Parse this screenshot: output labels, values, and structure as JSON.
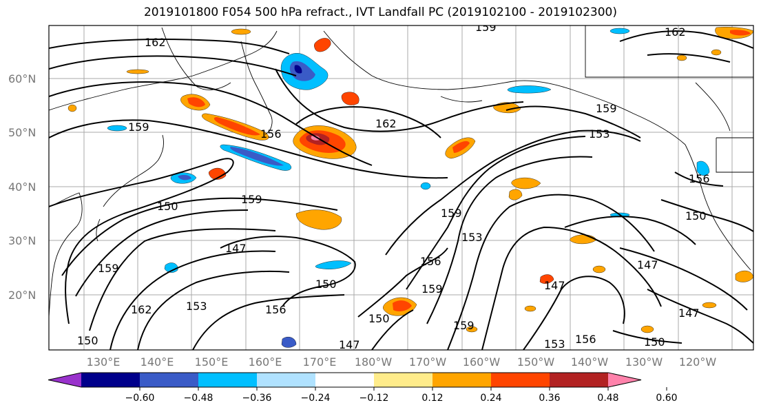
{
  "title": "2019101800 F054 500 hPa refract., IVT Landfall PC (2019102100 - 2019102300)",
  "map": {
    "lat_labels": [
      "60°N",
      "50°N",
      "40°N",
      "30°N",
      "20°N"
    ],
    "lon_labels": [
      "130°E",
      "140°E",
      "150°E",
      "160°E",
      "170°E",
      "180°W",
      "170°W",
      "160°W",
      "150°W",
      "140°W",
      "130°W",
      "120°W"
    ],
    "contour_labels": [
      "162",
      "162",
      "162",
      "159",
      "159",
      "159",
      "159",
      "156",
      "156",
      "153",
      "153",
      "150",
      "150",
      "150",
      "147",
      "147",
      "147",
      "147",
      "159",
      "159",
      "156",
      "153",
      "150",
      "159",
      "147",
      "150",
      "156",
      "153",
      "162",
      "150",
      "156",
      "159"
    ]
  },
  "colorbar": {
    "tick_labels": [
      "−0.60",
      "−0.48",
      "−0.36",
      "−0.24",
      "−0.12",
      "0.12",
      "0.24",
      "0.36",
      "0.48",
      "0.60"
    ],
    "colors": [
      "#9932cc",
      "#00008b",
      "#3a5bc7",
      "#00bfff",
      "#b0e2ff",
      "#ffffff",
      "#ffec8b",
      "#ffa500",
      "#ff4500",
      "#b22222",
      "#ff82ab"
    ]
  }
}
